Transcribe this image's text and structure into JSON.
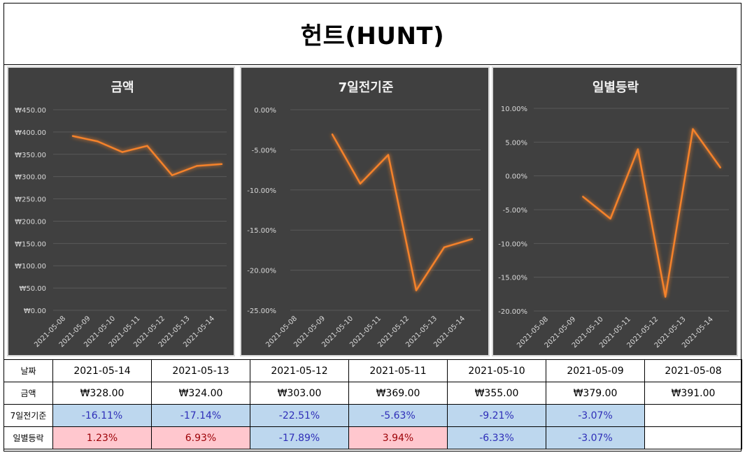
{
  "title": "헌트(HUNT)",
  "charts": {
    "amount": {
      "title": "금액",
      "y_ticks": [
        "₩450.00",
        "₩400.00",
        "₩350.00",
        "₩300.00",
        "₩250.00",
        "₩200.00",
        "₩150.00",
        "₩100.00",
        "₩50.00",
        "₩0.00"
      ],
      "x_ticks": [
        "2021-05-08",
        "2021-05-09",
        "2021-05-10",
        "2021-05-11",
        "2021-05-12",
        "2021-05-13",
        "2021-05-14"
      ]
    },
    "week": {
      "title": "7일전기준",
      "y_ticks": [
        "0.00%",
        "-5.00%",
        "-10.00%",
        "-15.00%",
        "-20.00%",
        "-25.00%"
      ],
      "x_ticks": [
        "2021-05-08",
        "2021-05-09",
        "2021-05-10",
        "2021-05-11",
        "2021-05-12",
        "2021-05-13",
        "2021-05-14"
      ]
    },
    "daily": {
      "title": "일별등락",
      "y_ticks": [
        "10.00%",
        "5.00%",
        "0.00%",
        "-5.00%",
        "-10.00%",
        "-15.00%",
        "-20.00%"
      ],
      "x_ticks": [
        "2021-05-08",
        "2021-05-09",
        "2021-05-10",
        "2021-05-11",
        "2021-05-12",
        "2021-05-13",
        "2021-05-14"
      ]
    }
  },
  "chart_data": [
    {
      "type": "line",
      "title": "금액",
      "x": [
        "2021-05-08",
        "2021-05-09",
        "2021-05-10",
        "2021-05-11",
        "2021-05-12",
        "2021-05-13",
        "2021-05-14"
      ],
      "series": [
        {
          "values": [
            391,
            379,
            355,
            369,
            303,
            324,
            328
          ]
        }
      ],
      "ylim": [
        0,
        450
      ],
      "grid": true,
      "line_color": "#f5822a"
    },
    {
      "type": "line",
      "title": "7일전기준",
      "x": [
        "2021-05-08",
        "2021-05-09",
        "2021-05-10",
        "2021-05-11",
        "2021-05-12",
        "2021-05-13",
        "2021-05-14"
      ],
      "series": [
        {
          "values": [
            null,
            -3.07,
            -9.21,
            -5.63,
            -22.51,
            -17.14,
            -16.11
          ]
        }
      ],
      "ylim": [
        -25,
        0
      ],
      "grid": true,
      "line_color": "#f5822a"
    },
    {
      "type": "line",
      "title": "일별등락",
      "x": [
        "2021-05-08",
        "2021-05-09",
        "2021-05-10",
        "2021-05-11",
        "2021-05-12",
        "2021-05-13",
        "2021-05-14"
      ],
      "series": [
        {
          "values": [
            null,
            -3.07,
            -6.33,
            3.94,
            -17.89,
            6.93,
            1.23
          ]
        }
      ],
      "ylim": [
        -20,
        10
      ],
      "grid": true,
      "line_color": "#f5822a"
    }
  ],
  "table": {
    "headers": [
      "날짜",
      "금액",
      "7일전기준",
      "일별등락"
    ],
    "dates": [
      "2021-05-14",
      "2021-05-13",
      "2021-05-12",
      "2021-05-11",
      "2021-05-10",
      "2021-05-09",
      "2021-05-08"
    ],
    "amounts": [
      "₩328.00",
      "₩324.00",
      "₩303.00",
      "₩369.00",
      "₩355.00",
      "₩379.00",
      "₩391.00"
    ],
    "week": [
      "-16.11%",
      "-17.14%",
      "-22.51%",
      "-5.63%",
      "-9.21%",
      "-3.07%",
      ""
    ],
    "daily": [
      "1.23%",
      "6.93%",
      "-17.89%",
      "3.94%",
      "-6.33%",
      "-3.07%",
      ""
    ],
    "colors": {
      "negative_bg": "#bdd7ee",
      "negative_text": "#2e2eb8",
      "positive_bg": "#ffc7ce",
      "positive_text": "#9c0006"
    }
  }
}
